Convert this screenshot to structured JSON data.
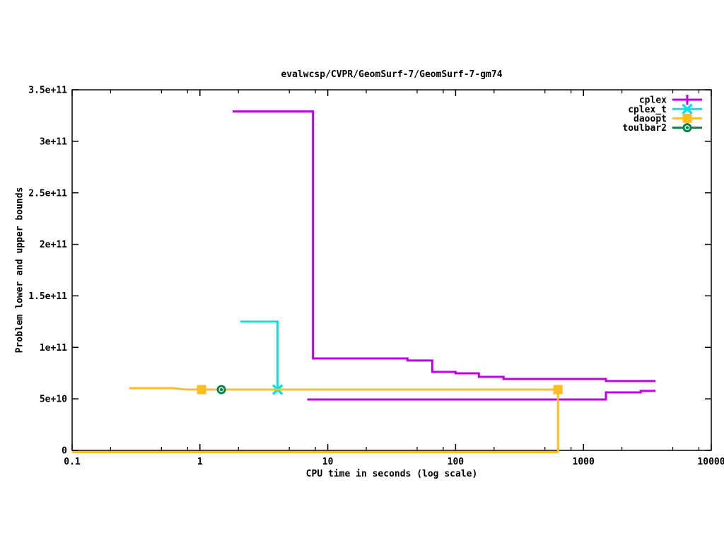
{
  "page": {
    "background": "#ffffff"
  },
  "chart_data": {
    "type": "line",
    "title": "evalwcsp/CVPR/GeomSurf-7/GeomSurf-7-gm74",
    "xlabel": "CPU time in seconds (log scale)",
    "ylabel": "Problem lower and upper bounds",
    "x_scale": "log",
    "xlim": [
      0.1,
      10000
    ],
    "ylim": [
      0,
      350000000000.0
    ],
    "grid": false,
    "legend_position": "top-right-inside",
    "axis_color": "#000000",
    "x_ticks": [
      {
        "v": 0.1,
        "label": "0.1"
      },
      {
        "v": 1,
        "label": "1"
      },
      {
        "v": 10,
        "label": "10"
      },
      {
        "v": 100,
        "label": "100"
      },
      {
        "v": 1000,
        "label": "1000"
      },
      {
        "v": 10000,
        "label": "10000"
      }
    ],
    "x_minor_ticks": [
      0.2,
      0.5,
      0.8,
      2,
      5,
      8,
      20,
      50,
      80,
      200,
      500,
      800,
      2000,
      5000,
      8000
    ],
    "y_ticks": [
      {
        "v": 0,
        "label": "0"
      },
      {
        "v": 50000000000.0,
        "label": "5e+10"
      },
      {
        "v": 100000000000.0,
        "label": "1e+11"
      },
      {
        "v": 150000000000.0,
        "label": "1.5e+11"
      },
      {
        "v": 200000000000.0,
        "label": "2e+11"
      },
      {
        "v": 250000000000.0,
        "label": "2.5e+11"
      },
      {
        "v": 300000000000.0,
        "label": "3e+11"
      },
      {
        "v": 350000000000.0,
        "label": "3.5e+11"
      }
    ],
    "series": [
      {
        "name": "cplex",
        "color": "#bf00e8",
        "marker": "plus",
        "lines": [
          [
            [
              1.8,
              329000000000.0
            ],
            [
              7.66,
              329000000000.0
            ],
            [
              7.66,
              89200000000.0
            ],
            [
              42,
              89200000000.0
            ],
            [
              42,
              87200000000.0
            ],
            [
              65.7,
              87200000000.0
            ],
            [
              65.7,
              76200000000.0
            ],
            [
              100,
              76200000000.0
            ],
            [
              100,
              74800000000.0
            ],
            [
              152,
              74800000000.0
            ],
            [
              152,
              71400000000.0
            ],
            [
              237,
              71400000000.0
            ],
            [
              237,
              69300000000.0
            ],
            [
              1500,
              69300000000.0
            ],
            [
              1500,
              67300000000.0
            ],
            [
              3660,
              67300000000.0
            ]
          ],
          [
            [
              6.9,
              49400000000.0
            ],
            [
              1500,
              49400000000.0
            ],
            [
              1500,
              56300000000.0
            ],
            [
              2805,
              56300000000.0
            ],
            [
              2805,
              57700000000.0
            ],
            [
              3660,
              57700000000.0
            ]
          ]
        ],
        "markers": []
      },
      {
        "name": "cplex_t",
        "color": "#00e5e5",
        "marker": "x",
        "lines": [
          [
            [
              2.07,
              125000000000.0
            ],
            [
              4.05,
              125000000000.0
            ],
            [
              4.05,
              59000000000.0
            ]
          ]
        ],
        "markers": [
          [
            4.05,
            59000000000.0
          ]
        ]
      },
      {
        "name": "daoopt",
        "color": "#ffbd22",
        "marker": "square",
        "lines": [
          [
            [
              0.28,
              60400000000.0
            ],
            [
              0.62,
              60400000000.0
            ],
            [
              0.78,
              59000000000.0
            ],
            [
              632,
              59000000000.0
            ],
            [
              632,
              0
            ]
          ],
          [
            [
              0.1,
              0
            ],
            [
              632,
              0
            ]
          ]
        ],
        "markers": [
          [
            1.03,
            59000000000.0
          ],
          [
            632,
            59000000000.0
          ]
        ]
      },
      {
        "name": "toulbar2",
        "color": "#00864c",
        "marker": "circle-dot",
        "lines": [],
        "markers": [
          [
            1.47,
            59000000000.0
          ]
        ]
      }
    ]
  }
}
